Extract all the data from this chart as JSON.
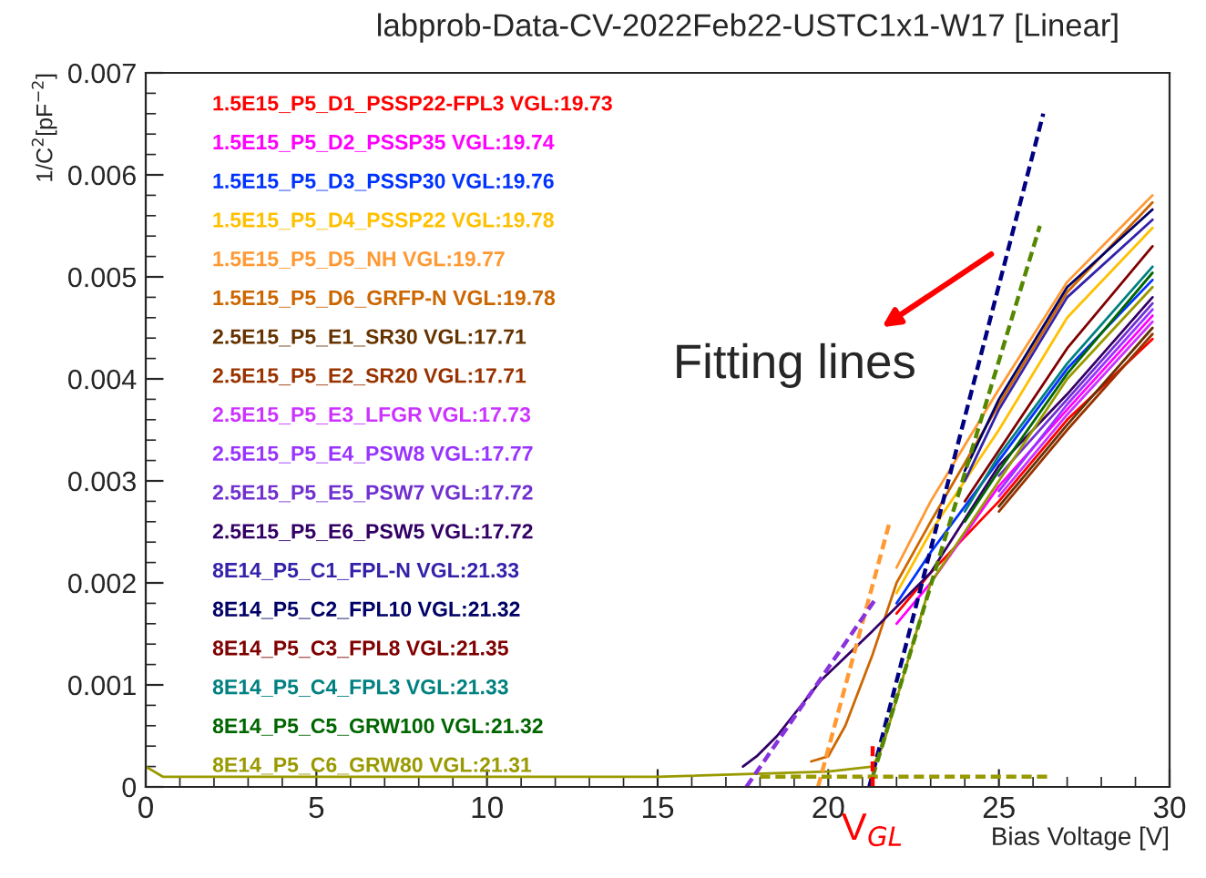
{
  "chart_data": {
    "type": "line",
    "title": "labprob-Data-CV-2022Feb22-USTC1x1-W17 [Linear]",
    "xlabel": "Bias Voltage [V]",
    "ylabel": "1/C$^{2}$[pF$^{−2}$]",
    "xlim": [
      0,
      30
    ],
    "ylim": [
      0,
      0.007
    ],
    "xticks": [
      0,
      5,
      10,
      15,
      20,
      25,
      30
    ],
    "yticks": [
      0,
      0.001,
      0.002,
      0.003,
      0.004,
      0.005,
      0.006,
      0.007
    ],
    "grid": false,
    "legend": false,
    "marker": "none",
    "series": [
      {
        "name": "1.5E15_P5_D1_PSSP22-FPL3 VGL:19.73",
        "color": "#ff0000",
        "x": [
          22,
          23,
          25,
          27,
          29.5
        ],
        "values": [
          0.0017,
          0.0021,
          0.0028,
          0.0036,
          0.00439
        ]
      },
      {
        "name": "1.5E15_P5_D2_PSSP35 VGL:19.74",
        "color": "#ff00ff",
        "x": [
          22,
          23,
          25,
          27,
          29.5
        ],
        "values": [
          0.0016,
          0.002,
          0.00295,
          0.0037,
          0.00462
        ]
      },
      {
        "name": "1.5E15_P5_D3_PSSP30 VGL:19.76",
        "color": "#0033ff",
        "x": [
          22,
          23,
          25,
          27,
          29.5
        ],
        "values": [
          0.0018,
          0.0023,
          0.0032,
          0.0041,
          0.00497
        ]
      },
      {
        "name": "1.5E15_P5_D4_PSSP22 VGL:19.78",
        "color": "#ffc000",
        "x": [
          22,
          23,
          25,
          27,
          29.5
        ],
        "values": [
          0.0019,
          0.0025,
          0.0035,
          0.0046,
          0.00548
        ]
      },
      {
        "name": "1.5E15_P5_D5_NH VGL:19.77",
        "color": "#ff9933",
        "x": [
          22,
          23,
          25,
          27,
          29.5
        ],
        "values": [
          0.00215,
          0.0028,
          0.0039,
          0.00495,
          0.0058
        ]
      },
      {
        "name": "1.5E15_P5_D6_GRFP-N VGL:19.78",
        "color": "#cc6600",
        "x": [
          19.5,
          20,
          20.5,
          21.3,
          22,
          23,
          25,
          27,
          29.5
        ],
        "values": [
          0.00025,
          0.0003,
          0.0006,
          0.0013,
          0.002,
          0.0026,
          0.00375,
          0.00485,
          0.00573
        ]
      },
      {
        "name": "2.5E15_P5_E1_SR30 VGL:17.71",
        "color": "#663300",
        "x": [
          25,
          27,
          29.5
        ],
        "values": [
          0.00275,
          0.00355,
          0.0045
        ]
      },
      {
        "name": "2.5E15_P5_E2_SR20 VGL:17.71",
        "color": "#993300",
        "x": [
          25,
          27,
          29.5
        ],
        "values": [
          0.0027,
          0.0035,
          0.00444
        ]
      },
      {
        "name": "2.5E15_P5_E3_LFGR VGL:17.73",
        "color": "#cc33ff",
        "x": [
          25,
          27,
          29.5
        ],
        "values": [
          0.00285,
          0.00365,
          0.00456
        ]
      },
      {
        "name": "2.5E15_P5_E4_PSW8 VGL:17.77",
        "color": "#9933ff",
        "x": [
          25,
          27,
          29.5
        ],
        "values": [
          0.0029,
          0.00375,
          0.00468
        ]
      },
      {
        "name": "2.5E15_P5_E5_PSW7 VGL:17.72",
        "color": "#7030d0",
        "x": [
          25,
          27,
          29.5
        ],
        "values": [
          0.00305,
          0.0038,
          0.00474
        ]
      },
      {
        "name": "2.5E15_P5_E6_PSW5 VGL:17.72",
        "color": "#330066",
        "x": [
          17.5,
          17.9,
          18.5,
          19.8,
          21.3,
          23,
          25,
          27,
          29.5
        ],
        "values": [
          0.0002,
          0.0003,
          0.0005,
          0.00105,
          0.00153,
          0.0021,
          0.00315,
          0.00385,
          0.0048
        ]
      },
      {
        "name": "8E14_P5_C1_FPL-N VGL:21.33",
        "color": "#3322aa",
        "x": [
          24,
          25,
          27,
          29.5
        ],
        "values": [
          0.003,
          0.0037,
          0.0048,
          0.00556
        ]
      },
      {
        "name": "8E14_P5_C2_FPL10 VGL:21.32",
        "color": "#000066",
        "x": [
          24,
          25,
          27,
          29.5
        ],
        "values": [
          0.0031,
          0.0038,
          0.0049,
          0.00566
        ]
      },
      {
        "name": "8E14_P5_C3_FPL8 VGL:21.35",
        "color": "#800000",
        "x": [
          24,
          25,
          27,
          29.5
        ],
        "values": [
          0.0028,
          0.0033,
          0.0043,
          0.0053
        ]
      },
      {
        "name": "8E14_P5_C4_FPL3 VGL:21.33",
        "color": "#008080",
        "x": [
          24,
          25,
          27,
          29.5
        ],
        "values": [
          0.0027,
          0.00325,
          0.00415,
          0.0051
        ]
      },
      {
        "name": "8E14_P5_C5_GRW100 VGL:21.32",
        "color": "#006600",
        "x": [
          24,
          25,
          27,
          29.5
        ],
        "values": [
          0.0026,
          0.0031,
          0.00405,
          0.00504
        ]
      },
      {
        "name": "8E14_P5_C6_GRW80 VGL:21.31",
        "color": "#999900",
        "x": [
          0,
          0.5,
          5,
          10,
          15,
          20,
          21.3,
          21.6,
          22.3,
          23,
          24,
          25,
          27,
          29.5
        ],
        "values": [
          0.0002,
          0.0001,
          0.0001,
          0.0001,
          0.0001,
          0.00015,
          0.0002,
          0.0004,
          0.0012,
          0.002,
          0.0025,
          0.003,
          0.004,
          0.0049
        ]
      },
      {
        "color": "#000080",
        "line_style": "dashed",
        "x": [
          21.2,
          26.3
        ],
        "values": [
          0,
          0.0066
        ]
      },
      {
        "color": "#558800",
        "line_style": "dashed",
        "x": [
          21.3,
          26.2
        ],
        "values": [
          0.0001,
          0.0055
        ]
      },
      {
        "color": "#ff9933",
        "line_style": "dashed",
        "x": [
          19.7,
          21.8
        ],
        "values": [
          0,
          0.0026
        ]
      },
      {
        "color": "#8833dd",
        "line_style": "dashed",
        "x": [
          17.6,
          21.4
        ],
        "values": [
          0,
          0.00185
        ]
      },
      {
        "color": "#999900",
        "line_style": "dashed",
        "x": [
          18,
          26.5
        ],
        "values": [
          0.0001,
          0.0001
        ]
      },
      {
        "color": "#ff0000",
        "line_style": "dashed",
        "x": [
          21.3,
          21.3
        ],
        "values": [
          0,
          0.0004
        ]
      }
    ],
    "annotations": [
      "Fitting lines",
      {
        "text": "V$_{GL}$",
        "x": 21.3,
        "y": 0
      }
    ]
  }
}
